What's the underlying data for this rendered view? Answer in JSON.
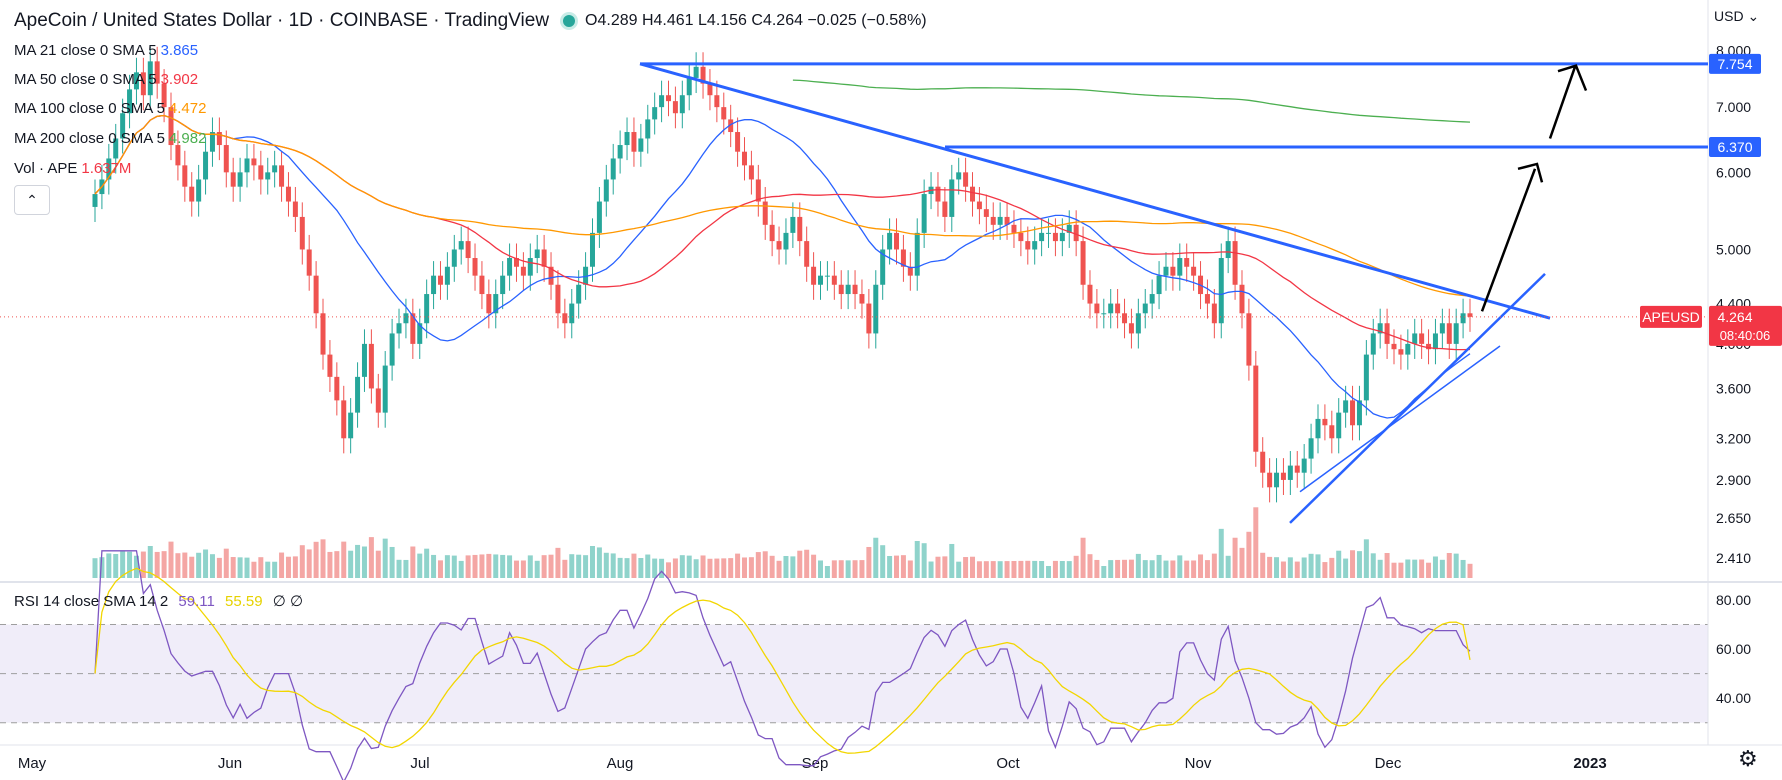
{
  "header": {
    "title": "ApeCoin / United States Dollar · 1D · COINBASE · TradingView",
    "ohlc": "O4.289  H4.461  L4.156  C4.264  −0.025 (−0.58%)",
    "currency": "USD"
  },
  "indicators": [
    {
      "label": "MA 21 close 0 SMA 5",
      "value": "3.865",
      "color": "#2962ff"
    },
    {
      "label": "MA 50 close 0 SMA 5",
      "value": "3.902",
      "color": "#f23645"
    },
    {
      "label": "MA 100 close 0 SMA 5",
      "value": "4.472",
      "color": "#ff9800"
    },
    {
      "label": "MA 200 close 0 SMA 5",
      "value": "4.982",
      "color": "#4caf50"
    },
    {
      "label": "Vol · APE",
      "value": "1.637M",
      "color": "#f23645"
    }
  ],
  "rsi_header": {
    "label": "RSI 14 close SMA 14 2",
    "v1": "59.11",
    "v2": "55.59",
    "v3": "∅  ∅"
  },
  "chart_data": [
    {
      "type": "candlestick",
      "symbol": "APEUSD",
      "scale": "log",
      "last_price": 4.264,
      "countdown": "08:40:06",
      "x_ticks": [
        "May",
        "Jun",
        "Jul",
        "Aug",
        "Sep",
        "Oct",
        "Nov",
        "Dec",
        "2023"
      ],
      "y_ticks": [
        2.41,
        2.65,
        2.9,
        3.2,
        3.6,
        4.0,
        4.4,
        5.0,
        6.0,
        7.0,
        8.0
      ],
      "ylim": [
        2.3,
        8.4
      ],
      "price_labels": [
        {
          "value": "7.754",
          "color": "#2962ff"
        },
        {
          "value": "6.370",
          "color": "#2962ff"
        },
        {
          "value": "4.264",
          "color": "#f23645",
          "name": "APEUSD"
        }
      ],
      "approx_closes": [
        5.7,
        5.9,
        6.2,
        6.5,
        6.9,
        7.3,
        7.6,
        7.2,
        7.8,
        7.4,
        7.0,
        6.4,
        6.1,
        5.8,
        5.6,
        5.9,
        6.3,
        6.6,
        6.4,
        6.0,
        5.8,
        6.0,
        6.2,
        6.1,
        5.9,
        6.0,
        6.1,
        5.8,
        5.6,
        5.4,
        5.0,
        4.7,
        4.3,
        3.9,
        3.7,
        3.5,
        3.2,
        3.4,
        3.7,
        4.0,
        3.6,
        3.4,
        3.8,
        4.1,
        4.2,
        4.3,
        4.0,
        4.2,
        4.5,
        4.7,
        4.6,
        4.8,
        5.0,
        5.1,
        4.9,
        4.7,
        4.5,
        4.3,
        4.5,
        4.7,
        4.9,
        4.8,
        4.7,
        4.9,
        5.0,
        4.8,
        4.6,
        4.3,
        4.2,
        4.4,
        4.6,
        4.8,
        5.2,
        5.6,
        5.9,
        6.2,
        6.4,
        6.6,
        6.3,
        6.5,
        6.8,
        7.0,
        7.2,
        7.1,
        6.9,
        7.2,
        7.5,
        7.7,
        7.4,
        7.2,
        7.0,
        6.8,
        6.6,
        6.3,
        6.1,
        5.9,
        5.6,
        5.3,
        5.1,
        5.0,
        5.2,
        5.4,
        5.1,
        4.8,
        4.6,
        4.7,
        4.7,
        4.6,
        4.5,
        4.6,
        4.5,
        4.4,
        4.1,
        4.6,
        5.0,
        5.2,
        5.0,
        4.8,
        4.7,
        5.2,
        5.7,
        5.8,
        5.6,
        5.4,
        5.9,
        6.0,
        5.8,
        5.6,
        5.5,
        5.4,
        5.3,
        5.4,
        5.3,
        5.2,
        5.1,
        5.0,
        5.1,
        5.2,
        5.2,
        5.1,
        5.2,
        5.3,
        5.1,
        4.6,
        4.4,
        4.3,
        4.3,
        4.4,
        4.3,
        4.2,
        4.1,
        4.3,
        4.4,
        4.5,
        4.7,
        4.8,
        4.7,
        4.9,
        4.8,
        4.7,
        4.5,
        4.4,
        4.2,
        4.9,
        5.1,
        4.6,
        4.3,
        3.8,
        3.1,
        2.95,
        2.85,
        2.95,
        2.9,
        3.0,
        2.95,
        3.05,
        3.2,
        3.35,
        3.3,
        3.2,
        3.4,
        3.5,
        3.3,
        3.5,
        3.9,
        4.1,
        4.2,
        4.0,
        3.95,
        3.9,
        4.0,
        4.1,
        4.0,
        3.95,
        4.1,
        4.2,
        4.0,
        4.2,
        4.3,
        4.264
      ]
    },
    {
      "type": "bar",
      "name": "Vol · APE",
      "last": "1.637M"
    },
    {
      "type": "line",
      "name": "RSI 14",
      "y_ticks": [
        40.0,
        60.0,
        80.0
      ],
      "ylim": [
        25,
        82
      ],
      "bands": [
        30,
        70
      ],
      "rsi_last": 59.11,
      "rsi_ma_last": 55.59
    }
  ]
}
